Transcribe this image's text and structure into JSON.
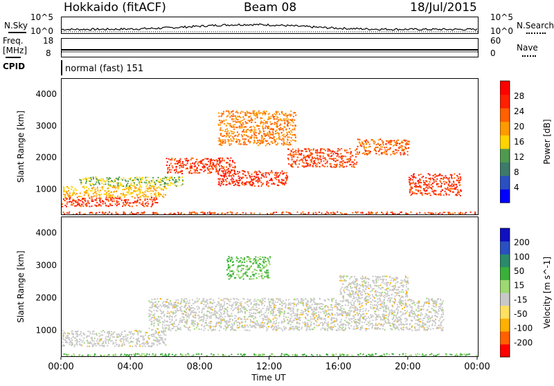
{
  "header": {
    "station": "Hokkaido (fitACF)",
    "beam": "Beam 08",
    "date": "18/Jul/2015"
  },
  "top_panels": {
    "nsky_label": "N.Sky",
    "nsky_ticks": [
      "10^5",
      "10^0"
    ],
    "nsearch_label": "N.Search",
    "nsearch_ticks": [
      "10^5",
      "10^0"
    ],
    "freq_label": "Freq.",
    "freq_unit": "[MHz]",
    "freq_ticks": [
      "18",
      "8"
    ],
    "nave_label": "Nave",
    "nave_ticks": [
      "60",
      "0"
    ],
    "cpid_label": "CPID",
    "cpid_value": "normal (fast) 151"
  },
  "x_axis": {
    "label": "Time UT",
    "ticks": [
      "00:00",
      "04:00",
      "08:00",
      "12:00",
      "16:00",
      "20:00",
      "00:00"
    ]
  },
  "colors": {
    "power": [
      "#0000ff",
      "#2a4fc0",
      "#3d7a6a",
      "#4f9a4f",
      "#ffd400",
      "#ff9a00",
      "#ff6000",
      "#ff2000",
      "#ff0000"
    ],
    "velocity": [
      "#ff0000",
      "#ff6000",
      "#ffb000",
      "#ffe060",
      "#c8c8c8",
      "#9ed870",
      "#3ab03a",
      "#2a8a6a",
      "#2a4fc0",
      "#1010c0"
    ]
  },
  "chart_data": [
    {
      "type": "heatmap",
      "ylabel": "Slant Range [km]",
      "xlabel": "",
      "ylim": [
        180,
        4500
      ],
      "yticks": [
        "1000",
        "2000",
        "3000",
        "4000"
      ],
      "ytick_values": [
        1000,
        2000,
        3000,
        4000
      ],
      "xlim_hours": [
        0,
        24
      ],
      "colorbar": {
        "label": "Power [dB]",
        "ticks": [
          "4",
          "8",
          "12",
          "16",
          "20",
          "24",
          "28"
        ],
        "range": [
          0,
          32
        ]
      },
      "bands": [
        {
          "t0": 0,
          "t1": 24,
          "r0": 200,
          "r1": 280,
          "value": 26
        },
        {
          "t0": 0,
          "t1": 5.5,
          "r0": 450,
          "r1": 750,
          "value": 27
        },
        {
          "t0": 0,
          "t1": 6,
          "r0": 750,
          "r1": 1100,
          "value": 18
        },
        {
          "t0": 1,
          "t1": 7,
          "r0": 1100,
          "r1": 1400,
          "value": 14
        },
        {
          "t0": 6,
          "t1": 10,
          "r0": 1500,
          "r1": 2000,
          "value": 27
        },
        {
          "t0": 9,
          "t1": 13,
          "r0": 1100,
          "r1": 1600,
          "value": 28
        },
        {
          "t0": 13,
          "t1": 17,
          "r0": 1700,
          "r1": 2300,
          "value": 26
        },
        {
          "t0": 17,
          "t1": 20,
          "r0": 2100,
          "r1": 2600,
          "value": 24
        },
        {
          "t0": 20,
          "t1": 23,
          "r0": 800,
          "r1": 1500,
          "value": 27
        },
        {
          "t0": 9,
          "t1": 13.5,
          "r0": 2400,
          "r1": 3500,
          "value": 22
        }
      ]
    },
    {
      "type": "heatmap",
      "ylabel": "Slant Range [km]",
      "xlabel": "Time UT",
      "ylim": [
        180,
        4500
      ],
      "yticks": [
        "1000",
        "2000",
        "3000",
        "4000"
      ],
      "ytick_values": [
        1000,
        2000,
        3000,
        4000
      ],
      "xlim_hours": [
        0,
        24
      ],
      "colorbar": {
        "label": "Velocity [m s^-1]",
        "ticks": [
          "-200",
          "-100",
          "-50",
          "-15",
          "15",
          "50",
          "100",
          "200"
        ]
      },
      "bands": [
        {
          "t0": 0,
          "t1": 24,
          "r0": 200,
          "r1": 280,
          "value": "positive"
        },
        {
          "t0": 0,
          "t1": 6,
          "r0": 500,
          "r1": 1000,
          "value": "neutral"
        },
        {
          "t0": 5,
          "t1": 22,
          "r0": 1000,
          "r1": 2000,
          "value": "neutral"
        },
        {
          "t0": 16,
          "t1": 20,
          "r0": 2000,
          "r1": 2700,
          "value": "neutral"
        },
        {
          "t0": 9.5,
          "t1": 12,
          "r0": 2600,
          "r1": 3300,
          "value": "positive"
        }
      ]
    }
  ]
}
